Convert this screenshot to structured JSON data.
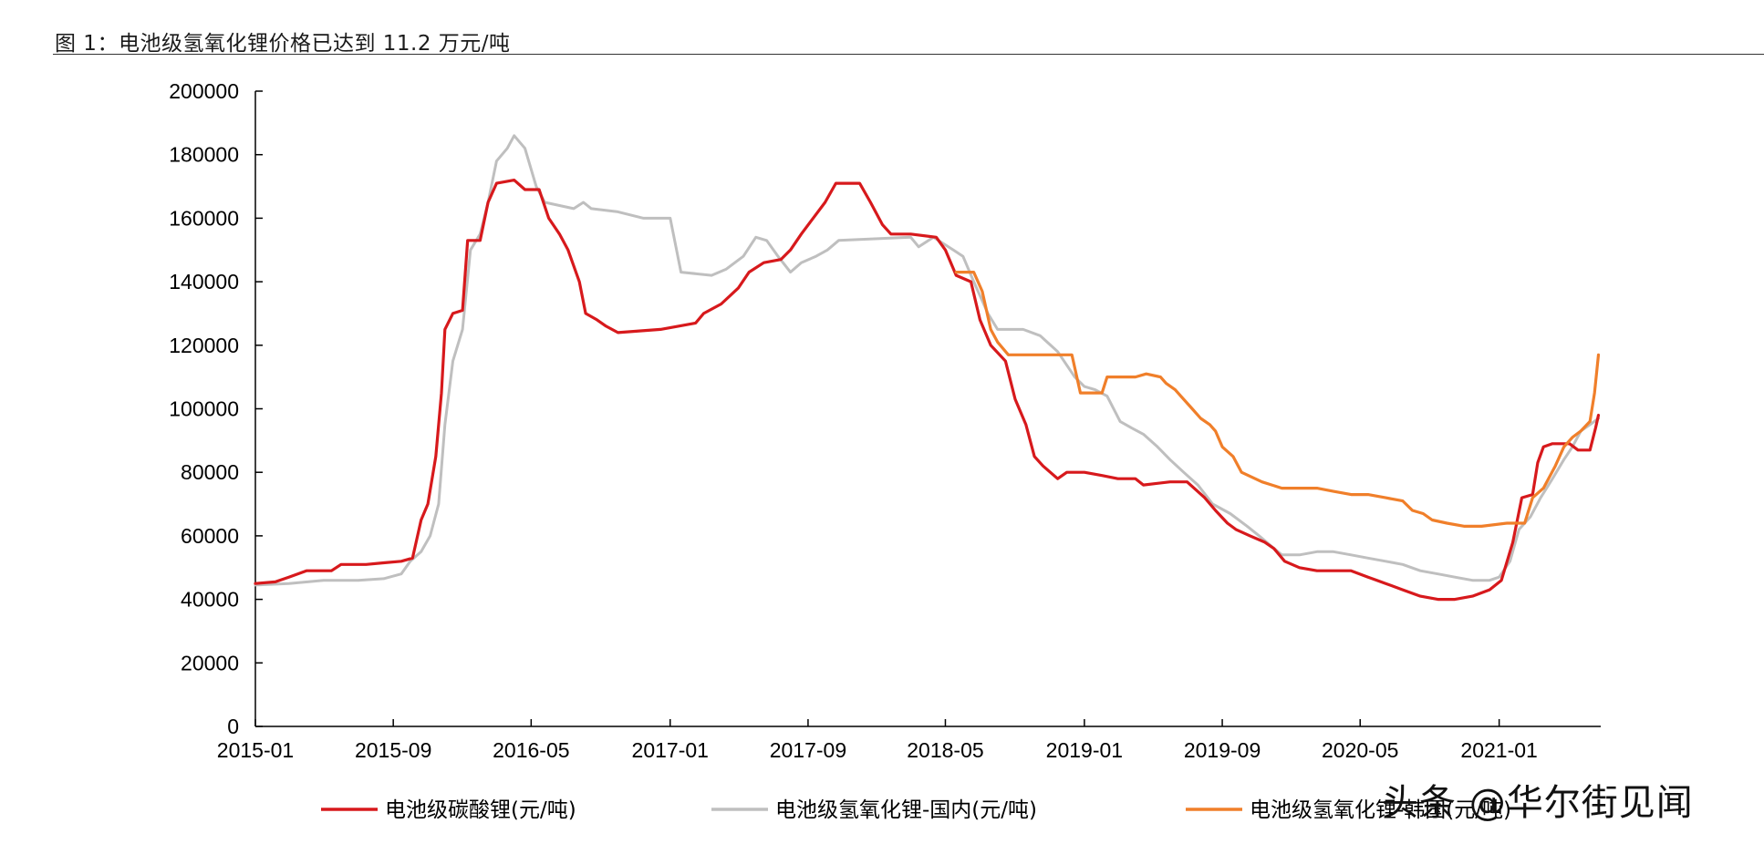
{
  "figure": {
    "title": "图 1：电池级氢氧化锂价格已达到 11.2 万元/吨"
  },
  "watermark": "头条 @华尔街见闻",
  "chart_data": {
    "type": "line",
    "ylim": [
      0,
      200000
    ],
    "y_ticks": [
      "0",
      "20000",
      "40000",
      "60000",
      "80000",
      "100000",
      "120000",
      "140000",
      "160000",
      "180000",
      "200000"
    ],
    "x_range": [
      "2015-01",
      "2021-06"
    ],
    "x_ticks": [
      "2015-01",
      "2015-09",
      "2016-05",
      "2017-01",
      "2017-09",
      "2018-05",
      "2019-01",
      "2019-09",
      "2020-05",
      "2021-01"
    ],
    "grid": false,
    "legend_position": "bottom",
    "series": [
      {
        "name": "电池级碳酸锂(元/吨)",
        "color": "#d7191c",
        "points": [
          [
            "2015-01-01",
            45000
          ],
          [
            "2015-02-05",
            45500
          ],
          [
            "2015-03-01",
            47000
          ],
          [
            "2015-04-01",
            49000
          ],
          [
            "2015-05-15",
            49000
          ],
          [
            "2015-06-01",
            51000
          ],
          [
            "2015-07-15",
            51000
          ],
          [
            "2015-08-15",
            51500
          ],
          [
            "2015-09-15",
            52000
          ],
          [
            "2015-10-05",
            53000
          ],
          [
            "2015-10-20",
            65000
          ],
          [
            "2015-11-01",
            70000
          ],
          [
            "2015-11-15",
            85000
          ],
          [
            "2015-11-25",
            105000
          ],
          [
            "2015-12-01",
            125000
          ],
          [
            "2015-12-15",
            130000
          ],
          [
            "2016-01-01",
            131000
          ],
          [
            "2016-01-10",
            153000
          ],
          [
            "2016-02-01",
            153000
          ],
          [
            "2016-02-15",
            165000
          ],
          [
            "2016-03-01",
            171000
          ],
          [
            "2016-04-01",
            172000
          ],
          [
            "2016-04-20",
            169000
          ],
          [
            "2016-05-15",
            169000
          ],
          [
            "2016-06-01",
            160000
          ],
          [
            "2016-06-20",
            155000
          ],
          [
            "2016-07-05",
            150000
          ],
          [
            "2016-07-25",
            140000
          ],
          [
            "2016-08-05",
            130000
          ],
          [
            "2016-08-25",
            128000
          ],
          [
            "2016-09-10",
            126000
          ],
          [
            "2016-10-01",
            124000
          ],
          [
            "2016-12-15",
            125000
          ],
          [
            "2017-01-15",
            126000
          ],
          [
            "2017-02-15",
            127000
          ],
          [
            "2017-03-01",
            130000
          ],
          [
            "2017-04-01",
            133000
          ],
          [
            "2017-05-01",
            138000
          ],
          [
            "2017-05-20",
            143000
          ],
          [
            "2017-06-15",
            146000
          ],
          [
            "2017-07-15",
            147000
          ],
          [
            "2017-08-01",
            150000
          ],
          [
            "2017-08-20",
            155000
          ],
          [
            "2017-09-10",
            160000
          ],
          [
            "2017-10-01",
            165000
          ],
          [
            "2017-10-20",
            171000
          ],
          [
            "2017-12-01",
            171000
          ],
          [
            "2017-12-20",
            165000
          ],
          [
            "2018-01-10",
            158000
          ],
          [
            "2018-01-25",
            155000
          ],
          [
            "2018-03-01",
            155000
          ],
          [
            "2018-04-15",
            154000
          ],
          [
            "2018-05-01",
            150000
          ],
          [
            "2018-05-20",
            142000
          ],
          [
            "2018-06-15",
            140000
          ],
          [
            "2018-07-01",
            128000
          ],
          [
            "2018-07-20",
            120000
          ],
          [
            "2018-08-15",
            115000
          ],
          [
            "2018-09-01",
            103000
          ],
          [
            "2018-09-20",
            95000
          ],
          [
            "2018-10-05",
            85000
          ],
          [
            "2018-10-20",
            82000
          ],
          [
            "2018-11-15",
            78000
          ],
          [
            "2018-12-01",
            80000
          ],
          [
            "2019-01-01",
            80000
          ],
          [
            "2019-02-01",
            79000
          ],
          [
            "2019-03-01",
            78000
          ],
          [
            "2019-04-01",
            78000
          ],
          [
            "2019-04-15",
            76000
          ],
          [
            "2019-06-01",
            77000
          ],
          [
            "2019-07-01",
            77000
          ],
          [
            "2019-08-01",
            72000
          ],
          [
            "2019-08-20",
            68000
          ],
          [
            "2019-09-10",
            64000
          ],
          [
            "2019-09-25",
            62000
          ],
          [
            "2019-10-20",
            60000
          ],
          [
            "2019-11-15",
            58000
          ],
          [
            "2019-12-01",
            56000
          ],
          [
            "2019-12-20",
            52000
          ],
          [
            "2020-01-15",
            50000
          ],
          [
            "2020-02-15",
            49000
          ],
          [
            "2020-04-15",
            49000
          ],
          [
            "2020-05-15",
            47000
          ],
          [
            "2020-06-15",
            45000
          ],
          [
            "2020-07-15",
            43000
          ],
          [
            "2020-08-15",
            41000
          ],
          [
            "2020-09-15",
            40000
          ],
          [
            "2020-10-15",
            40000
          ],
          [
            "2020-11-15",
            41000
          ],
          [
            "2020-12-15",
            43000
          ],
          [
            "2021-01-05",
            46000
          ],
          [
            "2021-01-25",
            58000
          ],
          [
            "2021-02-10",
            72000
          ],
          [
            "2021-03-01",
            73000
          ],
          [
            "2021-03-10",
            83000
          ],
          [
            "2021-03-20",
            88000
          ],
          [
            "2021-04-05",
            89000
          ],
          [
            "2021-04-20",
            89000
          ],
          [
            "2021-05-05",
            89000
          ],
          [
            "2021-05-20",
            87000
          ],
          [
            "2021-06-10",
            87000
          ],
          [
            "2021-06-20",
            94000
          ],
          [
            "2021-06-25",
            98000
          ]
        ]
      },
      {
        "name": "电池级氢氧化锂-国内(元/吨)",
        "color": "#bfbfbf",
        "points": [
          [
            "2015-01-01",
            44500
          ],
          [
            "2015-03-01",
            45000
          ],
          [
            "2015-05-01",
            46000
          ],
          [
            "2015-07-01",
            46000
          ],
          [
            "2015-08-15",
            46500
          ],
          [
            "2015-09-15",
            48000
          ],
          [
            "2015-10-01",
            52000
          ],
          [
            "2015-10-20",
            55000
          ],
          [
            "2015-11-05",
            60000
          ],
          [
            "2015-11-20",
            70000
          ],
          [
            "2015-12-01",
            95000
          ],
          [
            "2015-12-15",
            115000
          ],
          [
            "2016-01-01",
            125000
          ],
          [
            "2016-01-15",
            150000
          ],
          [
            "2016-02-01",
            155000
          ],
          [
            "2016-02-15",
            165000
          ],
          [
            "2016-03-01",
            178000
          ],
          [
            "2016-03-20",
            182000
          ],
          [
            "2016-04-01",
            186000
          ],
          [
            "2016-04-20",
            182000
          ],
          [
            "2016-05-10",
            170000
          ],
          [
            "2016-05-25",
            165000
          ],
          [
            "2016-07-15",
            163000
          ],
          [
            "2016-08-01",
            165000
          ],
          [
            "2016-08-15",
            163000
          ],
          [
            "2016-10-01",
            162000
          ],
          [
            "2016-11-15",
            160000
          ],
          [
            "2017-01-01",
            160000
          ],
          [
            "2017-01-20",
            143000
          ],
          [
            "2017-03-15",
            142000
          ],
          [
            "2017-04-10",
            144000
          ],
          [
            "2017-05-10",
            148000
          ],
          [
            "2017-06-01",
            154000
          ],
          [
            "2017-06-20",
            153000
          ],
          [
            "2017-07-10",
            148000
          ],
          [
            "2017-08-01",
            143000
          ],
          [
            "2017-08-20",
            146000
          ],
          [
            "2017-09-15",
            148000
          ],
          [
            "2017-10-05",
            150000
          ],
          [
            "2017-10-25",
            153000
          ],
          [
            "2018-03-01",
            154000
          ],
          [
            "2018-03-15",
            151000
          ],
          [
            "2018-04-10",
            154000
          ],
          [
            "2018-05-15",
            150000
          ],
          [
            "2018-06-01",
            148000
          ],
          [
            "2018-06-20",
            140000
          ],
          [
            "2018-07-15",
            130000
          ],
          [
            "2018-08-01",
            125000
          ],
          [
            "2018-09-15",
            125000
          ],
          [
            "2018-10-15",
            123000
          ],
          [
            "2018-11-15",
            118000
          ],
          [
            "2018-12-15",
            110000
          ],
          [
            "2019-01-01",
            107000
          ],
          [
            "2019-01-20",
            106000
          ],
          [
            "2019-02-10",
            104000
          ],
          [
            "2019-03-05",
            96000
          ],
          [
            "2019-03-25",
            94000
          ],
          [
            "2019-04-15",
            92000
          ],
          [
            "2019-05-10",
            88000
          ],
          [
            "2019-06-01",
            84000
          ],
          [
            "2019-06-25",
            80000
          ],
          [
            "2019-07-20",
            76000
          ],
          [
            "2019-08-15",
            70000
          ],
          [
            "2019-09-15",
            67000
          ],
          [
            "2019-10-15",
            63000
          ],
          [
            "2019-11-05",
            60000
          ],
          [
            "2019-11-25",
            57000
          ],
          [
            "2019-12-15",
            54000
          ],
          [
            "2020-01-15",
            54000
          ],
          [
            "2020-02-15",
            55000
          ],
          [
            "2020-03-15",
            55000
          ],
          [
            "2020-04-15",
            54000
          ],
          [
            "2020-05-15",
            53000
          ],
          [
            "2020-06-15",
            52000
          ],
          [
            "2020-07-15",
            51000
          ],
          [
            "2020-08-15",
            49000
          ],
          [
            "2020-09-15",
            48000
          ],
          [
            "2020-10-15",
            47000
          ],
          [
            "2020-11-15",
            46000
          ],
          [
            "2020-12-15",
            46000
          ],
          [
            "2021-01-01",
            47000
          ],
          [
            "2021-01-20",
            52000
          ],
          [
            "2021-02-05",
            62000
          ],
          [
            "2021-02-25",
            66000
          ],
          [
            "2021-03-15",
            72000
          ],
          [
            "2021-04-05",
            78000
          ],
          [
            "2021-04-25",
            84000
          ],
          [
            "2021-05-10",
            88000
          ],
          [
            "2021-05-25",
            93000
          ],
          [
            "2021-06-10",
            95000
          ],
          [
            "2021-06-25",
            97000
          ]
        ]
      },
      {
        "name": "电池级氢氧化锂-韩国(元/吨)",
        "color": "#f07f2a",
        "points": [
          [
            "2018-05-20",
            143000
          ],
          [
            "2018-06-01",
            143000
          ],
          [
            "2018-06-20",
            143000
          ],
          [
            "2018-07-05",
            137000
          ],
          [
            "2018-07-20",
            125000
          ],
          [
            "2018-08-01",
            121000
          ],
          [
            "2018-08-20",
            117000
          ],
          [
            "2018-11-20",
            117000
          ],
          [
            "2018-12-10",
            117000
          ],
          [
            "2018-12-25",
            105000
          ],
          [
            "2019-02-01",
            105000
          ],
          [
            "2019-02-10",
            110000
          ],
          [
            "2019-04-01",
            110000
          ],
          [
            "2019-04-20",
            111000
          ],
          [
            "2019-05-15",
            110000
          ],
          [
            "2019-05-25",
            108000
          ],
          [
            "2019-06-10",
            106000
          ],
          [
            "2019-06-20",
            104000
          ],
          [
            "2019-07-10",
            100000
          ],
          [
            "2019-07-25",
            97000
          ],
          [
            "2019-08-10",
            95000
          ],
          [
            "2019-08-20",
            93000
          ],
          [
            "2019-09-01",
            88000
          ],
          [
            "2019-09-20",
            85000
          ],
          [
            "2019-10-05",
            80000
          ],
          [
            "2019-11-10",
            77000
          ],
          [
            "2019-12-15",
            75000
          ],
          [
            "2020-02-15",
            75000
          ],
          [
            "2020-03-15",
            74000
          ],
          [
            "2020-04-15",
            73000
          ],
          [
            "2020-05-15",
            73000
          ],
          [
            "2020-06-15",
            72000
          ],
          [
            "2020-07-15",
            71000
          ],
          [
            "2020-08-01",
            68000
          ],
          [
            "2020-08-20",
            67000
          ],
          [
            "2020-09-05",
            65000
          ],
          [
            "2020-10-01",
            64000
          ],
          [
            "2020-11-01",
            63000
          ],
          [
            "2020-12-01",
            63000
          ],
          [
            "2021-01-15",
            64000
          ],
          [
            "2021-02-15",
            64000
          ],
          [
            "2021-03-01",
            72000
          ],
          [
            "2021-03-20",
            75000
          ],
          [
            "2021-04-10",
            82000
          ],
          [
            "2021-04-25",
            88000
          ],
          [
            "2021-05-10",
            91000
          ],
          [
            "2021-05-25",
            93000
          ],
          [
            "2021-06-10",
            96000
          ],
          [
            "2021-06-18",
            105000
          ],
          [
            "2021-06-25",
            117000
          ]
        ]
      }
    ]
  }
}
